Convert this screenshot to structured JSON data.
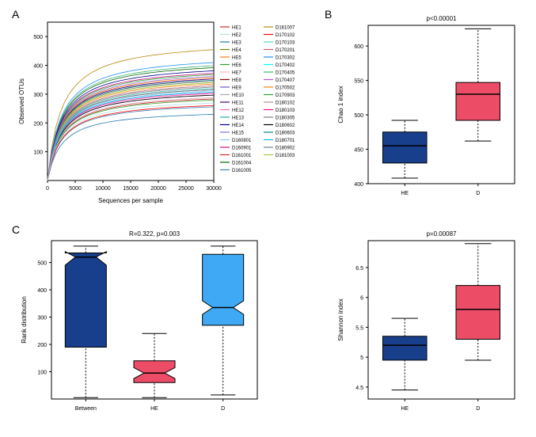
{
  "panelA": {
    "label": "A",
    "type": "line",
    "xlabel": "Sequences per sample",
    "ylabel": "Observed OTUs",
    "xlim": [
      0,
      30000
    ],
    "ylim": [
      0,
      550
    ],
    "xticks": [
      0,
      5000,
      10000,
      15000,
      20000,
      25000,
      30000
    ],
    "yticks": [
      100,
      200,
      300,
      400,
      500
    ],
    "axis_fontsize": 8,
    "tick_fontsize": 7,
    "background_color": "#ffffff",
    "border_color": "#000000",
    "legend_col1": [
      "HE1",
      "HE2",
      "HE3",
      "HE4",
      "HE5",
      "HE6",
      "HE7",
      "HE8",
      "HE9",
      "HE10",
      "HE11",
      "HE12",
      "HE13",
      "HE14",
      "HE15",
      "D160801",
      "D160901",
      "D161001",
      "D161004",
      "D161005"
    ],
    "legend_col2": [
      "D161007",
      "D170102",
      "D170103",
      "D170201",
      "D170302",
      "D170402",
      "D170405",
      "D170407",
      "D170502",
      "D170903",
      "D180102",
      "D180103",
      "D180305",
      "D180602",
      "D180603",
      "D180701",
      "D180902",
      "D181003"
    ],
    "legend_colors_col1": [
      "#d62728",
      "#b0e0e6",
      "#1f77b4",
      "#808000",
      "#ff7f0e",
      "#2ca02c",
      "#ffb6c1",
      "#8b0000",
      "#6a5acd",
      "#a9a9a9",
      "#4b0082",
      "#ff69b4",
      "#20b2aa",
      "#00008b",
      "#9370db",
      "#87cefa",
      "#c71585",
      "#d62728",
      "#006400",
      "#4682b4"
    ],
    "legend_colors_col2": [
      "#b8860b",
      "#ff0000",
      "#48d1cc",
      "#cd5c5c",
      "#1e90ff",
      "#00ffff",
      "#3cb371",
      "#ba55d3",
      "#ff7f0e",
      "#2ca02c",
      "#bc8f8f",
      "#ff1493",
      "#808080",
      "#000000",
      "#008080",
      "#00bfff",
      "#708090",
      "#9acd32"
    ],
    "curves": [
      {
        "color": "#b8860b",
        "end": 505,
        "mid": 0.95
      },
      {
        "color": "#1f77b4",
        "end": 265,
        "mid": 0.88
      },
      {
        "color": "#87cefa",
        "end": 355,
        "mid": 0.9
      },
      {
        "color": "#2ca02c",
        "end": 415,
        "mid": 0.92
      },
      {
        "color": "#d62728",
        "end": 325,
        "mid": 0.89
      },
      {
        "color": "#ff7f0e",
        "end": 380,
        "mid": 0.91
      },
      {
        "color": "#006400",
        "end": 440,
        "mid": 0.93
      },
      {
        "color": "#9467bd",
        "end": 360,
        "mid": 0.9
      },
      {
        "color": "#ff1493",
        "end": 345,
        "mid": 0.9
      },
      {
        "color": "#808080",
        "end": 390,
        "mid": 0.91
      },
      {
        "color": "#8b0000",
        "end": 370,
        "mid": 0.9
      },
      {
        "color": "#00ffff",
        "end": 330,
        "mid": 0.89
      },
      {
        "color": "#4b0082",
        "end": 400,
        "mid": 0.91
      },
      {
        "color": "#1e90ff",
        "end": 460,
        "mid": 0.93
      },
      {
        "color": "#20b2aa",
        "end": 350,
        "mid": 0.9
      },
      {
        "color": "#6a5acd",
        "end": 375,
        "mid": 0.9
      },
      {
        "color": "#b0e0e6",
        "end": 310,
        "mid": 0.88
      },
      {
        "color": "#c71585",
        "end": 420,
        "mid": 0.92
      },
      {
        "color": "#808000",
        "end": 360,
        "mid": 0.9
      },
      {
        "color": "#cd5c5c",
        "end": 395,
        "mid": 0.91
      },
      {
        "color": "#ba55d3",
        "end": 340,
        "mid": 0.89
      },
      {
        "color": "#3cb371",
        "end": 450,
        "mid": 0.92
      },
      {
        "color": "#4682b4",
        "end": 295,
        "mid": 0.88
      },
      {
        "color": "#ff7f0e",
        "end": 405,
        "mid": 0.91
      },
      {
        "color": "#a9a9a9",
        "end": 370,
        "mid": 0.9
      },
      {
        "color": "#ff69b4",
        "end": 350,
        "mid": 0.9
      },
      {
        "color": "#00008b",
        "end": 430,
        "mid": 0.92
      },
      {
        "color": "#708090",
        "end": 360,
        "mid": 0.9
      },
      {
        "color": "#9acd32",
        "end": 385,
        "mid": 0.91
      },
      {
        "color": "#ff0000",
        "end": 300,
        "mid": 0.88
      },
      {
        "color": "#2ca02c",
        "end": 320,
        "mid": 0.89
      },
      {
        "color": "#48d1cc",
        "end": 365,
        "mid": 0.9
      },
      {
        "color": "#008080",
        "end": 395,
        "mid": 0.91
      },
      {
        "color": "#bc8f8f",
        "end": 375,
        "mid": 0.9
      },
      {
        "color": "#000000",
        "end": 340,
        "mid": 0.89
      },
      {
        "color": "#9370db",
        "end": 410,
        "mid": 0.91
      },
      {
        "color": "#00bfff",
        "end": 350,
        "mid": 0.9
      },
      {
        "color": "#ffb6c1",
        "end": 330,
        "mid": 0.89
      }
    ]
  },
  "panelB": {
    "label": "B",
    "type": "boxplot",
    "title": "p<0.00001",
    "ylabel": "Chao 1 index",
    "ylim": [
      400,
      630
    ],
    "yticks": [
      400,
      450,
      500,
      550,
      600
    ],
    "categories": [
      "HE",
      "D"
    ],
    "box_colors": [
      "#183f8c",
      "#ed4c67"
    ],
    "border_color": "#000000",
    "background_color": "#ffffff",
    "title_fontsize": 8,
    "label_fontsize": 8,
    "tick_fontsize": 7,
    "boxes": [
      {
        "x": "HE",
        "q1": 430,
        "median": 455,
        "q3": 475,
        "wlo": 408,
        "whi": 492
      },
      {
        "x": "D",
        "q1": 492,
        "median": 530,
        "q3": 547,
        "wlo": 462,
        "whi": 625
      }
    ]
  },
  "panelC": {
    "label": "C",
    "type": "boxplot",
    "title": "R=0.322, p=0.003",
    "ylabel": "Rank distribution",
    "ylim": [
      0,
      580
    ],
    "yticks": [
      100,
      200,
      300,
      400,
      500
    ],
    "categories": [
      "Between",
      "HE",
      "D"
    ],
    "box_colors": [
      "#183f8c",
      "#ed4c67",
      "#3fa9f5"
    ],
    "border_color": "#000000",
    "background_color": "#ffffff",
    "title_fontsize": 8,
    "label_fontsize": 8,
    "tick_fontsize": 7,
    "notched": true,
    "boxes": [
      {
        "x": "Between",
        "q1": 190,
        "median": 520,
        "q3": 535,
        "wlo": 5,
        "whi": 560,
        "notch_lo": 490,
        "notch_hi": 540
      },
      {
        "x": "HE",
        "q1": 60,
        "median": 95,
        "q3": 140,
        "wlo": 5,
        "whi": 240,
        "notch_lo": 75,
        "notch_hi": 115
      },
      {
        "x": "D",
        "q1": 270,
        "median": 335,
        "q3": 530,
        "wlo": 15,
        "whi": 560,
        "notch_lo": 310,
        "notch_hi": 360
      }
    ]
  },
  "panelD": {
    "type": "boxplot",
    "title": "p=0.00087",
    "ylabel": "Shannon index",
    "ylim": [
      4.3,
      6.95
    ],
    "yticks": [
      4.5,
      5.0,
      5.5,
      6.0,
      6.5
    ],
    "categories": [
      "HE",
      "D"
    ],
    "box_colors": [
      "#183f8c",
      "#ed4c67"
    ],
    "border_color": "#000000",
    "background_color": "#ffffff",
    "title_fontsize": 8,
    "label_fontsize": 8,
    "tick_fontsize": 7,
    "boxes": [
      {
        "x": "HE",
        "q1": 4.95,
        "median": 5.2,
        "q3": 5.35,
        "wlo": 4.45,
        "whi": 5.65
      },
      {
        "x": "D",
        "q1": 5.3,
        "median": 5.8,
        "q3": 6.2,
        "wlo": 4.95,
        "whi": 6.9
      }
    ]
  }
}
